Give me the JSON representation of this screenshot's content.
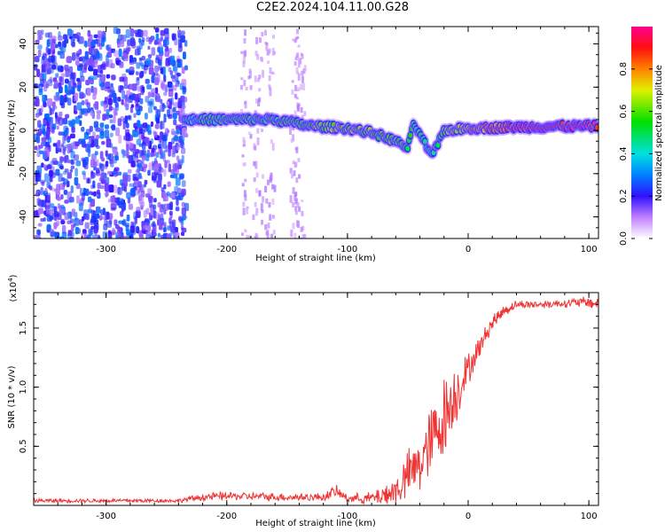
{
  "title": "C2E2.2024.104.11.00.G28",
  "chart_data": [
    {
      "type": "heatmap",
      "panel": "top",
      "xlabel": "Height of straight line (km)",
      "ylabel": "Frequency (Hz)",
      "xlim": [
        -360,
        108
      ],
      "ylim": [
        -50,
        48
      ],
      "xticks": [
        -300,
        -200,
        -100,
        0,
        100
      ],
      "yticks": [
        -40,
        -20,
        0,
        20,
        40
      ],
      "colorbar": {
        "label": "Normalized spectral amplitude",
        "range": [
          0.0,
          1.0
        ],
        "ticks": [
          0.0,
          0.2,
          0.4,
          0.6,
          0.8
        ]
      },
      "noise_region": {
        "x_range": [
          -360,
          -235
        ],
        "freq_range": [
          -50,
          48
        ],
        "amplitude": [
          0.1,
          0.3
        ]
      },
      "sparse_noise_columns": [
        -185,
        -175,
        -165,
        -145,
        -140
      ],
      "ridge": [
        {
          "x": -235,
          "freq": 5,
          "amp": 0.45
        },
        {
          "x": -200,
          "freq": 5,
          "amp": 0.5
        },
        {
          "x": -160,
          "freq": 5,
          "amp": 0.5
        },
        {
          "x": -130,
          "freq": 2,
          "amp": 0.6
        },
        {
          "x": -100,
          "freq": 1,
          "amp": 0.65
        },
        {
          "x": -80,
          "freq": -1,
          "amp": 0.6
        },
        {
          "x": -60,
          "freq": -5,
          "amp": 0.55
        },
        {
          "x": -50,
          "freq": -8,
          "amp": 0.5
        },
        {
          "x": -45,
          "freq": 3,
          "amp": 0.5
        },
        {
          "x": -30,
          "freq": -12,
          "amp": 0.45
        },
        {
          "x": -20,
          "freq": 0,
          "amp": 0.6
        },
        {
          "x": 0,
          "freq": 1,
          "amp": 0.75
        },
        {
          "x": 40,
          "freq": 1.5,
          "amp": 0.9
        },
        {
          "x": 90,
          "freq": 2,
          "amp": 0.95
        },
        {
          "x": 108,
          "freq": 2,
          "amp": 0.9
        }
      ]
    },
    {
      "type": "line",
      "panel": "bottom",
      "xlabel": "Height of straight line (km)",
      "ylabel": "SNR (10 * v/v)",
      "y_multiplier": "(x10",
      "y_multiplier_exp": "4",
      "y_multiplier_close": ")",
      "xlim": [
        -360,
        108
      ],
      "ylim": [
        0.0,
        1.8
      ],
      "xticks": [
        -300,
        -200,
        -100,
        0,
        100
      ],
      "yticks": [
        0.5,
        1.0,
        1.5
      ],
      "series": [
        {
          "color": "#ee3333",
          "x": [
            -360,
            -300,
            -240,
            -220,
            -200,
            -150,
            -120,
            -110,
            -100,
            -80,
            -60,
            -50,
            -40,
            -30,
            -20,
            -10,
            0,
            10,
            20,
            30,
            40,
            60,
            80,
            100,
            108
          ],
          "y": [
            0.04,
            0.04,
            0.04,
            0.07,
            0.08,
            0.07,
            0.07,
            0.12,
            0.06,
            0.06,
            0.12,
            0.25,
            0.35,
            0.55,
            0.75,
            0.95,
            1.15,
            1.35,
            1.55,
            1.65,
            1.7,
            1.7,
            1.71,
            1.72,
            1.7
          ],
          "noise": [
            0.01,
            0.01,
            0.01,
            0.02,
            0.02,
            0.02,
            0.02,
            0.03,
            0.02,
            0.03,
            0.08,
            0.12,
            0.15,
            0.18,
            0.2,
            0.15,
            0.08,
            0.05,
            0.04,
            0.03,
            0.02,
            0.02,
            0.02,
            0.03,
            0.03
          ]
        }
      ]
    }
  ]
}
